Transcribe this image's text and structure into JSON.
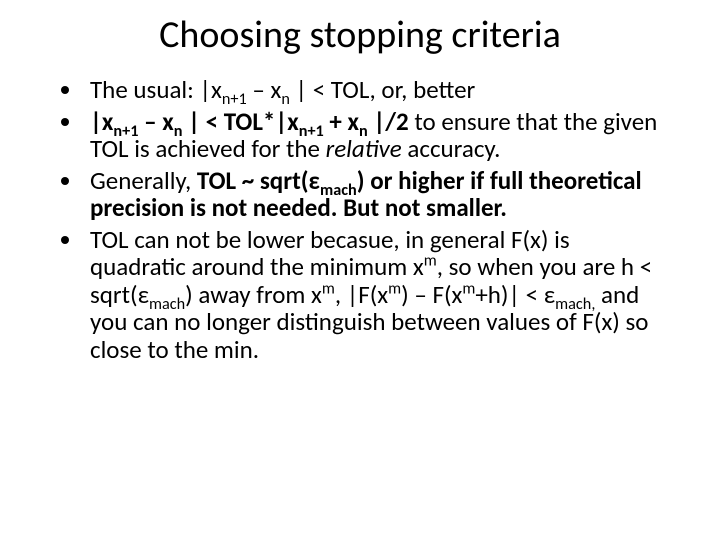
{
  "slide": {
    "title": "Choosing stopping criteria",
    "bullets": [
      {
        "parts": [
          {
            "t": "The usual: |x"
          },
          {
            "t": "n+1",
            "sub": true
          },
          {
            "t": " – x"
          },
          {
            "t": "n",
            "sub": true
          },
          {
            "t": " | < TOL, or, better"
          }
        ]
      },
      {
        "parts": [
          {
            "t": " |x",
            "bold": true
          },
          {
            "t": "n+1",
            "sub": true,
            "bold": true
          },
          {
            "t": " – x",
            "bold": true
          },
          {
            "t": "n",
            "sub": true,
            "bold": true
          },
          {
            "t": " | < TOL*|x",
            "bold": true
          },
          {
            "t": "n+1",
            "sub": true,
            "bold": true
          },
          {
            "t": " + x",
            "bold": true
          },
          {
            "t": "n",
            "sub": true,
            "bold": true
          },
          {
            "t": " |/2",
            "bold": true
          },
          {
            "t": " to ensure that the given TOL is achieved for the "
          },
          {
            "t": "relative",
            "italic": true
          },
          {
            "t": " accuracy."
          }
        ]
      },
      {
        "parts": [
          {
            "t": "Generally, "
          },
          {
            "t": "TOL ~ sqrt(ε",
            "bold": true
          },
          {
            "t": "mach",
            "sub": true,
            "bold": true
          },
          {
            "t": ") or higher if full theoretical precision is not needed. But not smaller.",
            "bold": true
          }
        ]
      },
      {
        "parts": [
          {
            "t": "TOL can not be lower becasue, in general F(x) is quadratic around the minimum x"
          },
          {
            "t": "m",
            "sup": true
          },
          {
            "t": ", so when you are h <  sqrt(ε"
          },
          {
            "t": "mach",
            "sub": true
          },
          {
            "t": ")  away from x"
          },
          {
            "t": "m",
            "sup": true
          },
          {
            "t": ",  |F(x"
          },
          {
            "t": "m",
            "sup": true
          },
          {
            "t": ") – F(x"
          },
          {
            "t": "m",
            "sup": true
          },
          {
            "t": "+h)| <  ε"
          },
          {
            "t": "mach,",
            "sub": true
          },
          {
            "t": " and you can no longer distinguish between values of F(x) so close to the min."
          }
        ]
      }
    ],
    "colors": {
      "background": "#ffffff",
      "text": "#000000"
    },
    "fonts": {
      "title_size_pt": 38,
      "body_size_pt": 25,
      "family": "Calibri"
    }
  }
}
